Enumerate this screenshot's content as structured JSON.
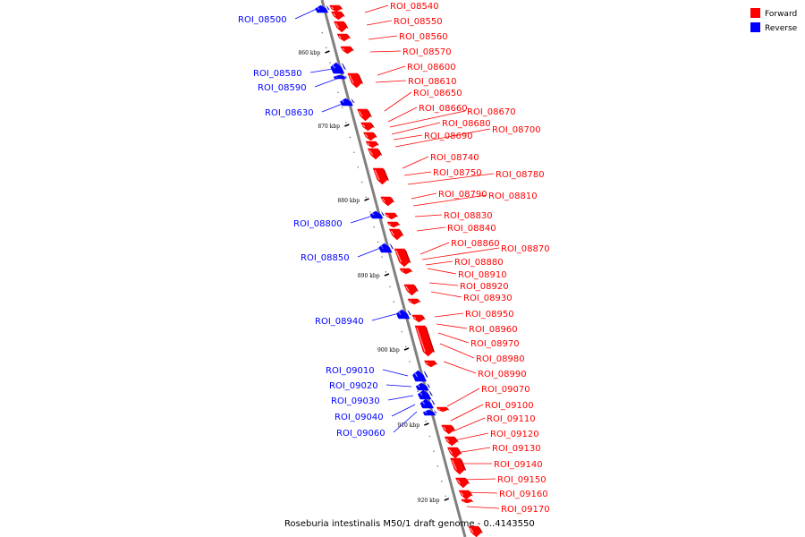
{
  "caption": "Roseburia intestinalis M50/1 draft genome - 0..4143550",
  "legend": [
    {
      "label": "Forward",
      "color": "#ff0000"
    },
    {
      "label": "Reverse",
      "color": "#0000ff"
    }
  ],
  "colors": {
    "forward": "#ff0000",
    "reverse": "#0000ff",
    "backbone": "#808080"
  },
  "scale_ticks": [
    {
      "label": "860 kbp",
      "kbp": 860
    },
    {
      "label": "870 kbp",
      "kbp": 870
    },
    {
      "label": "880 kbp",
      "kbp": 880
    },
    {
      "label": "890 kbp",
      "kbp": 890
    },
    {
      "label": "900 kbp",
      "kbp": 900
    },
    {
      "label": "910 kbp",
      "kbp": 910
    },
    {
      "label": "920 kbp",
      "kbp": 920
    }
  ],
  "forward_labels": [
    "ROI_08540",
    "ROI_08550",
    "ROI_08560",
    "ROI_08570",
    "ROI_08600",
    "ROI_08610",
    "ROI_08650",
    "ROI_08660",
    "ROI_08670",
    "ROI_08680",
    "ROI_08690",
    "ROI_08700",
    "ROI_08740",
    "ROI_08750",
    "ROI_08780",
    "ROI_08790",
    "ROI_08810",
    "ROI_08830",
    "ROI_08840",
    "ROI_08860",
    "ROI_08870",
    "ROI_08880",
    "ROI_08910",
    "ROI_08920",
    "ROI_08930",
    "ROI_08950",
    "ROI_08960",
    "ROI_08970",
    "ROI_08980",
    "ROI_08990",
    "ROI_09070",
    "ROI_09100",
    "ROI_09110",
    "ROI_09120",
    "ROI_09130",
    "ROI_09140",
    "ROI_09150",
    "ROI_09160",
    "ROI_09170"
  ],
  "reverse_labels": [
    "ROI_08500",
    "ROI_08580",
    "ROI_08590",
    "ROI_08630",
    "ROI_08800",
    "ROI_08850",
    "ROI_08940",
    "ROI_09010",
    "ROI_09020",
    "ROI_09030",
    "ROI_09040",
    "ROI_09060"
  ]
}
